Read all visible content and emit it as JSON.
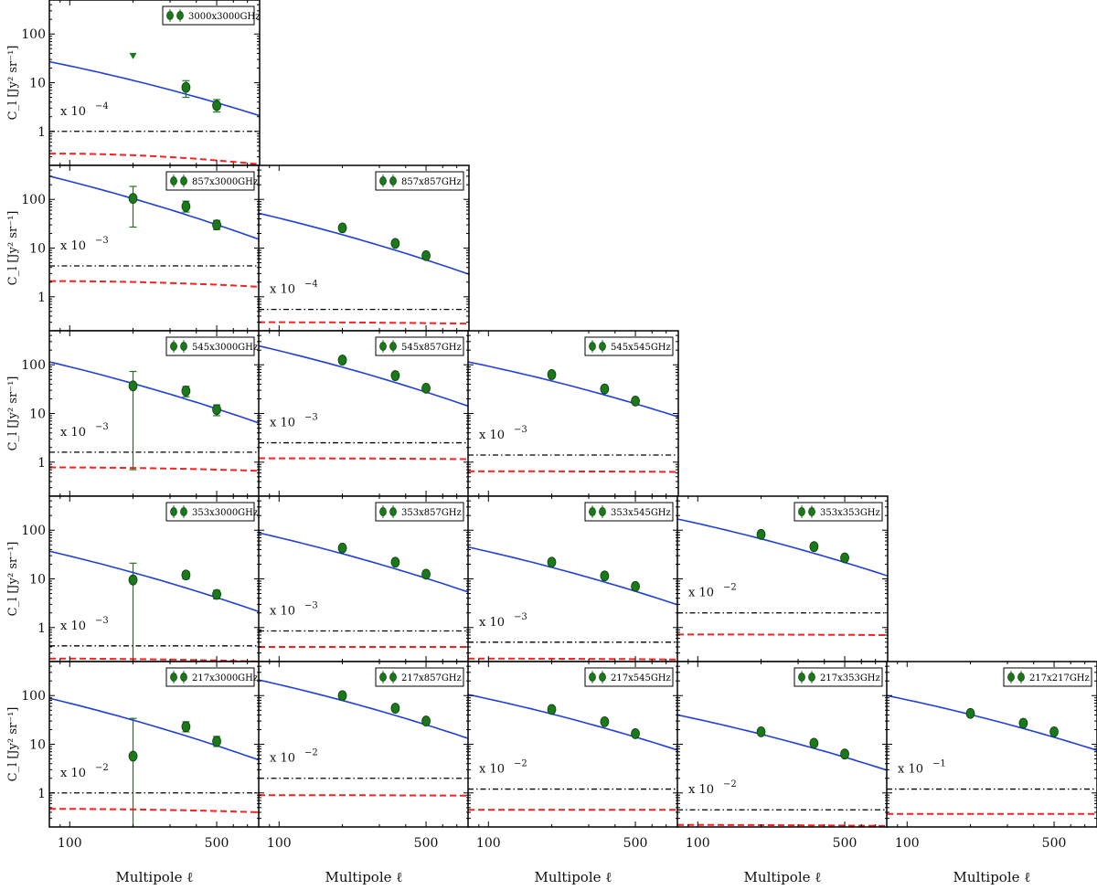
{
  "chart_data": {
    "type": "scatter",
    "layout": "lower-triangular grid, 5 rows x 5 columns",
    "xscale": "log",
    "yscale": "log",
    "xlim": [
      80,
      800
    ],
    "ylim": [
      0.2,
      500
    ],
    "xticks": [
      {
        "value": 100,
        "label": "100"
      },
      {
        "value": 500,
        "label": "500"
      }
    ],
    "yticks": [
      {
        "value": 1,
        "label": "1"
      },
      {
        "value": 10,
        "label": "10"
      },
      {
        "value": 100,
        "label": "100"
      }
    ],
    "xlabel": "Multipole ℓ",
    "ylabel": "C_l [Jy² sr⁻¹]",
    "legend_placement": "top-right",
    "colors": {
      "points": "#1a7a1a",
      "model": "#1f3fe0",
      "dashed": "#ff2020",
      "dashdot": "#000000"
    },
    "panels": [
      {
        "row": 0,
        "col": 0,
        "name": "3000x3000GHz",
        "scale_prefix": "x 10",
        "scale_exp": "−4",
        "model": [
          [
            80,
            27
          ],
          [
            800,
            2.1
          ]
        ],
        "dashdot": 1.0,
        "dashed": [
          [
            80,
            0.35
          ],
          [
            800,
            0.21
          ]
        ],
        "points": [
          {
            "l": 357,
            "cl": 8,
            "lo": 5,
            "hi": 11
          },
          {
            "l": 500,
            "cl": 3.4,
            "lo": 2.5,
            "hi": 4.5
          }
        ],
        "upper_limits": [
          {
            "l": 200,
            "cl": 36
          }
        ]
      },
      {
        "row": 1,
        "col": 0,
        "name": "857x3000GHz",
        "scale_prefix": "x 10",
        "scale_exp": "−3",
        "model": [
          [
            80,
            300
          ],
          [
            800,
            15
          ]
        ],
        "dashdot": 4.3,
        "dashed": [
          [
            80,
            2.1
          ],
          [
            800,
            1.6
          ]
        ],
        "points": [
          {
            "l": 200,
            "cl": 105,
            "lo": 27,
            "hi": 185
          },
          {
            "l": 357,
            "cl": 72,
            "lo": 55,
            "hi": 92
          },
          {
            "l": 500,
            "cl": 30,
            "lo": 24,
            "hi": 37
          }
        ],
        "upper_limits": []
      },
      {
        "row": 1,
        "col": 1,
        "name": "857x857GHz",
        "scale_prefix": "x 10",
        "scale_exp": "−4",
        "model": [
          [
            80,
            52
          ],
          [
            800,
            2.9
          ]
        ],
        "dashdot": 0.55,
        "dashed": [
          [
            80,
            0.3
          ],
          [
            800,
            0.28
          ]
        ],
        "points": [
          {
            "l": 200,
            "cl": 26,
            "lo": 23,
            "hi": 29
          },
          {
            "l": 357,
            "cl": 12.5,
            "lo": 11,
            "hi": 14
          },
          {
            "l": 500,
            "cl": 7,
            "lo": 6.2,
            "hi": 7.8
          }
        ],
        "upper_limits": []
      },
      {
        "row": 2,
        "col": 0,
        "name": "545x3000GHz",
        "scale_prefix": "x 10",
        "scale_exp": "−3",
        "model": [
          [
            80,
            115
          ],
          [
            800,
            6.3
          ]
        ],
        "dashdot": 1.6,
        "dashed": [
          [
            80,
            0.78
          ],
          [
            800,
            0.66
          ]
        ],
        "points": [
          {
            "l": 200,
            "cl": 37,
            "lo": 0.7,
            "hi": 73
          },
          {
            "l": 357,
            "cl": 29,
            "lo": 22,
            "hi": 36
          },
          {
            "l": 500,
            "cl": 12,
            "lo": 9,
            "hi": 15
          }
        ],
        "upper_limits": []
      },
      {
        "row": 2,
        "col": 1,
        "name": "545x857GHz",
        "scale_prefix": "x 10",
        "scale_exp": "−3",
        "model": [
          [
            80,
            245
          ],
          [
            800,
            14
          ]
        ],
        "dashdot": 2.5,
        "dashed": [
          [
            80,
            1.2
          ],
          [
            800,
            1.15
          ]
        ],
        "points": [
          {
            "l": 200,
            "cl": 125,
            "lo": 115,
            "hi": 135
          },
          {
            "l": 357,
            "cl": 60,
            "lo": 55,
            "hi": 66
          },
          {
            "l": 500,
            "cl": 33,
            "lo": 30,
            "hi": 36
          }
        ],
        "upper_limits": []
      },
      {
        "row": 2,
        "col": 2,
        "name": "545x545GHz",
        "scale_prefix": "x 10",
        "scale_exp": "−3",
        "model": [
          [
            80,
            115
          ],
          [
            800,
            8.5
          ]
        ],
        "dashdot": 1.4,
        "dashed": [
          [
            80,
            0.65
          ],
          [
            800,
            0.63
          ]
        ],
        "points": [
          {
            "l": 200,
            "cl": 63,
            "lo": 58,
            "hi": 68
          },
          {
            "l": 357,
            "cl": 32,
            "lo": 29,
            "hi": 35
          },
          {
            "l": 500,
            "cl": 18,
            "lo": 16.5,
            "hi": 19.5
          }
        ],
        "upper_limits": []
      },
      {
        "row": 3,
        "col": 0,
        "name": "353x3000GHz",
        "scale_prefix": "x 10",
        "scale_exp": "−3",
        "model": [
          [
            80,
            37
          ],
          [
            800,
            2.1
          ]
        ],
        "dashdot": 0.42,
        "dashed": [
          [
            80,
            0.23
          ],
          [
            800,
            0.2
          ]
        ],
        "points": [
          {
            "l": 200,
            "cl": 9.5,
            "lo": 0.2,
            "hi": 21
          },
          {
            "l": 357,
            "cl": 12,
            "lo": 10,
            "hi": 14
          },
          {
            "l": 500,
            "cl": 4.8,
            "lo": 3.9,
            "hi": 5.8
          }
        ],
        "upper_limits": []
      },
      {
        "row": 3,
        "col": 1,
        "name": "353x857GHz",
        "scale_prefix": "x 10",
        "scale_exp": "−3",
        "model": [
          [
            80,
            88
          ],
          [
            800,
            5.3
          ]
        ],
        "dashdot": 0.85,
        "dashed": [
          [
            80,
            0.4
          ],
          [
            800,
            0.4
          ]
        ],
        "points": [
          {
            "l": 200,
            "cl": 43,
            "lo": 39,
            "hi": 47
          },
          {
            "l": 357,
            "cl": 22,
            "lo": 20,
            "hi": 24
          },
          {
            "l": 500,
            "cl": 12.5,
            "lo": 11.3,
            "hi": 13.7
          }
        ],
        "upper_limits": []
      },
      {
        "row": 3,
        "col": 2,
        "name": "353x545GHz",
        "scale_prefix": "x 10",
        "scale_exp": "−3",
        "model": [
          [
            80,
            45
          ],
          [
            800,
            2.9
          ]
        ],
        "dashdot": 0.5,
        "dashed": [
          [
            80,
            0.23
          ],
          [
            800,
            0.22
          ]
        ],
        "points": [
          {
            "l": 200,
            "cl": 22,
            "lo": 20,
            "hi": 24
          },
          {
            "l": 357,
            "cl": 11.5,
            "lo": 10.5,
            "hi": 12.5
          },
          {
            "l": 500,
            "cl": 7,
            "lo": 6.3,
            "hi": 7.7
          }
        ],
        "upper_limits": []
      },
      {
        "row": 3,
        "col": 3,
        "name": "353x353GHz",
        "scale_prefix": "x 10",
        "scale_exp": "−2",
        "model": [
          [
            80,
            170
          ],
          [
            800,
            11.5
          ]
        ],
        "dashdot": 2.0,
        "dashed": [
          [
            80,
            0.72
          ],
          [
            800,
            0.7
          ]
        ],
        "points": [
          {
            "l": 200,
            "cl": 82,
            "lo": 76,
            "hi": 88
          },
          {
            "l": 357,
            "cl": 46,
            "lo": 42,
            "hi": 50
          },
          {
            "l": 500,
            "cl": 27,
            "lo": 24.5,
            "hi": 29.5
          }
        ],
        "upper_limits": []
      },
      {
        "row": 4,
        "col": 0,
        "name": "217x3000GHz",
        "scale_prefix": "x 10",
        "scale_exp": "−2",
        "model": [
          [
            80,
            88
          ],
          [
            800,
            4.7
          ]
        ],
        "dashdot": 1.0,
        "dashed": [
          [
            80,
            0.47
          ],
          [
            800,
            0.4
          ]
        ],
        "points": [
          {
            "l": 200,
            "cl": 5.7,
            "lo": 0.2,
            "hi": 34
          },
          {
            "l": 357,
            "cl": 23,
            "lo": 18,
            "hi": 29
          },
          {
            "l": 500,
            "cl": 11.5,
            "lo": 9,
            "hi": 14.5
          }
        ],
        "upper_limits": []
      },
      {
        "row": 4,
        "col": 1,
        "name": "217x857GHz",
        "scale_prefix": "x 10",
        "scale_exp": "−2",
        "model": [
          [
            80,
            210
          ],
          [
            800,
            13
          ]
        ],
        "dashdot": 2.0,
        "dashed": [
          [
            80,
            0.9
          ],
          [
            800,
            0.88
          ]
        ],
        "points": [
          {
            "l": 200,
            "cl": 100,
            "lo": 92,
            "hi": 108
          },
          {
            "l": 357,
            "cl": 55,
            "lo": 50,
            "hi": 60
          },
          {
            "l": 500,
            "cl": 30,
            "lo": 27,
            "hi": 33
          }
        ],
        "upper_limits": []
      },
      {
        "row": 4,
        "col": 2,
        "name": "217x545GHz",
        "scale_prefix": "x 10",
        "scale_exp": "−2",
        "model": [
          [
            80,
            105
          ],
          [
            800,
            7.5
          ]
        ],
        "dashdot": 1.2,
        "dashed": [
          [
            80,
            0.45
          ],
          [
            800,
            0.45
          ]
        ],
        "points": [
          {
            "l": 200,
            "cl": 52,
            "lo": 47,
            "hi": 57
          },
          {
            "l": 357,
            "cl": 29,
            "lo": 26,
            "hi": 32
          },
          {
            "l": 500,
            "cl": 16.5,
            "lo": 15,
            "hi": 18
          }
        ],
        "upper_limits": []
      },
      {
        "row": 4,
        "col": 3,
        "name": "217x353GHz",
        "scale_prefix": "x 10",
        "scale_exp": "−2",
        "model": [
          [
            80,
            40
          ],
          [
            800,
            2.9
          ]
        ],
        "dashdot": 0.45,
        "dashed": [
          [
            80,
            0.22
          ],
          [
            800,
            0.21
          ]
        ],
        "points": [
          {
            "l": 200,
            "cl": 18,
            "lo": 16,
            "hi": 20
          },
          {
            "l": 357,
            "cl": 10.5,
            "lo": 9.5,
            "hi": 11.5
          },
          {
            "l": 500,
            "cl": 6.3,
            "lo": 5.7,
            "hi": 6.9
          }
        ],
        "upper_limits": []
      },
      {
        "row": 4,
        "col": 4,
        "name": "217x217GHz",
        "scale_prefix": "x 10",
        "scale_exp": "−1",
        "model": [
          [
            80,
            100
          ],
          [
            800,
            7.5
          ]
        ],
        "dashdot": 1.2,
        "dashed": [
          [
            80,
            0.37
          ],
          [
            800,
            0.37
          ]
        ],
        "points": [
          {
            "l": 200,
            "cl": 43,
            "lo": 39,
            "hi": 47
          },
          {
            "l": 357,
            "cl": 27,
            "lo": 24.5,
            "hi": 29.5
          },
          {
            "l": 500,
            "cl": 18,
            "lo": 16.5,
            "hi": 19.5
          }
        ],
        "upper_limits": []
      }
    ]
  }
}
